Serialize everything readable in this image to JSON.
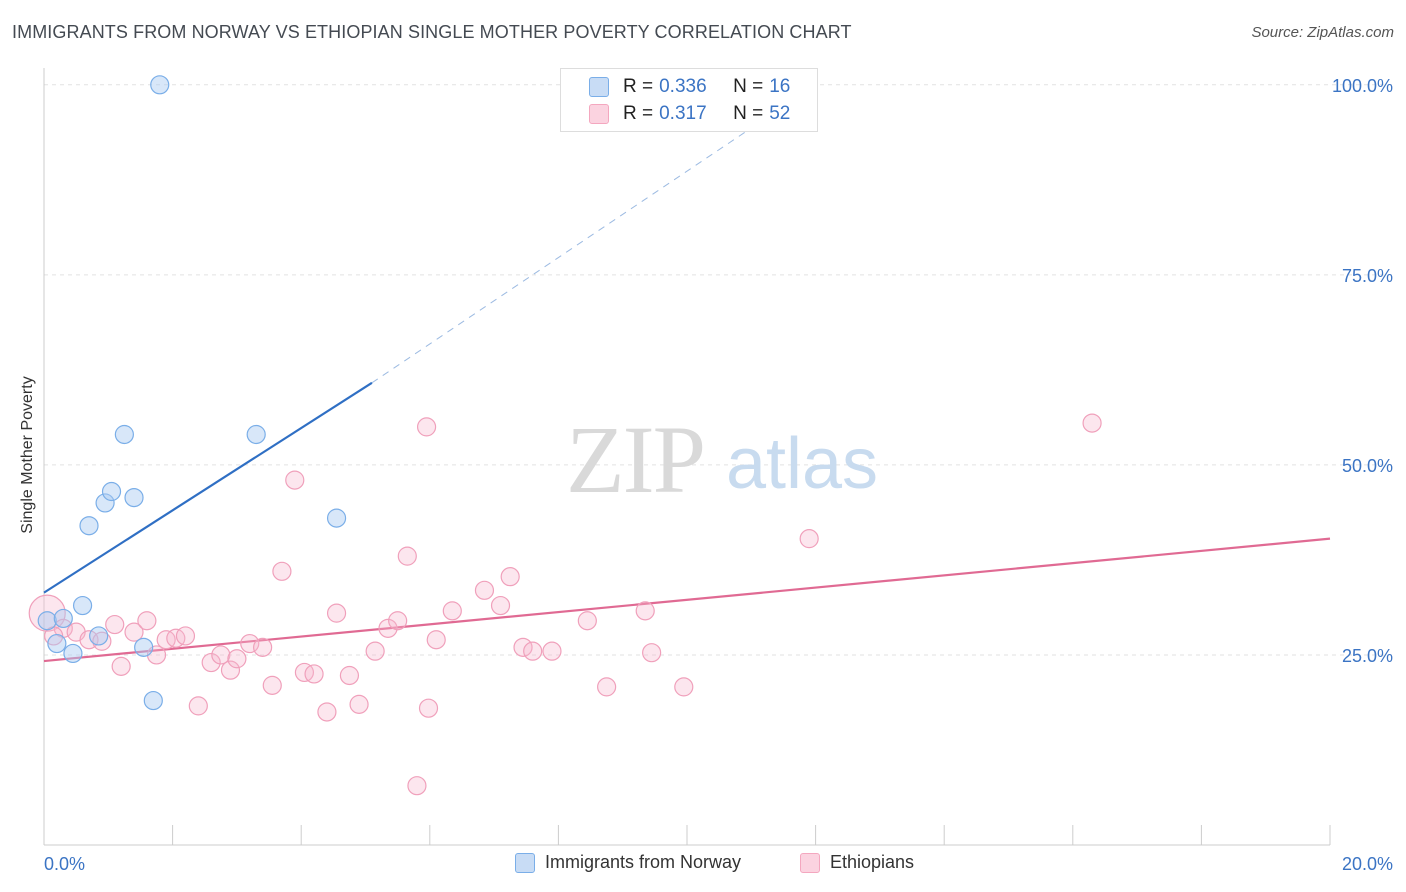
{
  "title": "IMMIGRANTS FROM NORWAY VS ETHIOPIAN SINGLE MOTHER POVERTY CORRELATION CHART",
  "source": "Source: ZipAtlas.com",
  "watermark": {
    "zip": "ZIP",
    "atlas": "atlas"
  },
  "legend_top": {
    "rows": [
      {
        "r_label": "R = ",
        "r_value": "0.336",
        "n_label": "N = ",
        "n_value": "16"
      },
      {
        "r_label": "R = ",
        "r_value": "0.317",
        "n_label": "N = ",
        "n_value": "52"
      }
    ]
  },
  "chart_data": {
    "type": "scatter",
    "xlabel": "",
    "ylabel": "Single Mother Poverty",
    "xlim": [
      0,
      20
    ],
    "ylim": [
      0,
      103
    ],
    "x_tick_labels": [
      "0.0%",
      "20.0%"
    ],
    "y_tick_labels": [
      "25.0%",
      "50.0%",
      "75.0%",
      "100.0%"
    ],
    "y_ticks": [
      25,
      50,
      75,
      100
    ],
    "grid": true,
    "legend_position": "bottom",
    "colors": {
      "norway": "#7aaee8",
      "ethiopians": "#f4a7bf",
      "norway_line": "#2f6fc4",
      "ethiopians_line": "#e06a93"
    },
    "series": [
      {
        "name": "Immigrants from Norway",
        "points": [
          [
            0.05,
            29.5
          ],
          [
            0.2,
            26.5
          ],
          [
            0.3,
            29.8
          ],
          [
            0.45,
            25.2
          ],
          [
            0.6,
            31.5
          ],
          [
            0.7,
            42
          ],
          [
            0.85,
            27.5
          ],
          [
            0.95,
            45
          ],
          [
            1.05,
            46.5
          ],
          [
            1.25,
            54
          ],
          [
            1.4,
            45.7
          ],
          [
            1.55,
            26
          ],
          [
            1.7,
            19
          ],
          [
            1.8,
            100
          ],
          [
            3.3,
            54
          ],
          [
            4.55,
            43
          ]
        ],
        "trend": {
          "x": [
            0,
            5.1
          ],
          "y": [
            33.2,
            60.8
          ],
          "dashed_to": [
            12,
            100
          ]
        }
      },
      {
        "name": "Ethiopians",
        "points": [
          [
            0.05,
            30.5
          ],
          [
            0.3,
            28.5
          ],
          [
            0.5,
            28
          ],
          [
            0.7,
            27
          ],
          [
            0.9,
            26.8
          ],
          [
            1.1,
            29
          ],
          [
            1.2,
            23.5
          ],
          [
            1.4,
            28
          ],
          [
            1.6,
            29.5
          ],
          [
            1.75,
            25
          ],
          [
            1.9,
            27
          ],
          [
            2.05,
            27.2
          ],
          [
            2.2,
            27.5
          ],
          [
            2.4,
            18.3
          ],
          [
            2.6,
            24
          ],
          [
            2.75,
            25
          ],
          [
            2.9,
            23
          ],
          [
            3.0,
            24.5
          ],
          [
            3.2,
            26.5
          ],
          [
            3.4,
            26
          ],
          [
            3.55,
            21
          ],
          [
            3.7,
            36
          ],
          [
            3.9,
            48
          ],
          [
            4.05,
            22.7
          ],
          [
            4.2,
            22.5
          ],
          [
            4.4,
            17.5
          ],
          [
            4.55,
            30.5
          ],
          [
            4.75,
            22.3
          ],
          [
            4.9,
            18.5
          ],
          [
            5.15,
            25.5
          ],
          [
            5.35,
            28.5
          ],
          [
            5.5,
            29.5
          ],
          [
            5.65,
            38
          ],
          [
            5.8,
            7.8
          ],
          [
            5.95,
            55
          ],
          [
            5.98,
            18
          ],
          [
            6.1,
            27
          ],
          [
            6.35,
            30.8
          ],
          [
            6.85,
            33.5
          ],
          [
            7.1,
            31.5
          ],
          [
            7.25,
            35.3
          ],
          [
            7.45,
            26
          ],
          [
            7.6,
            25.5
          ],
          [
            7.9,
            25.5
          ],
          [
            8.45,
            29.5
          ],
          [
            8.75,
            20.8
          ],
          [
            9.35,
            30.8
          ],
          [
            9.45,
            25.3
          ],
          [
            9.95,
            20.8
          ],
          [
            11.9,
            40.3
          ],
          [
            16.3,
            55.5
          ],
          [
            0.15,
            27.5
          ]
        ],
        "trend": {
          "x": [
            0,
            20
          ],
          "y": [
            24.2,
            40.3
          ]
        }
      }
    ]
  },
  "legend_bottom": [
    {
      "label": "Immigrants from Norway"
    },
    {
      "label": "Ethiopians"
    }
  ]
}
